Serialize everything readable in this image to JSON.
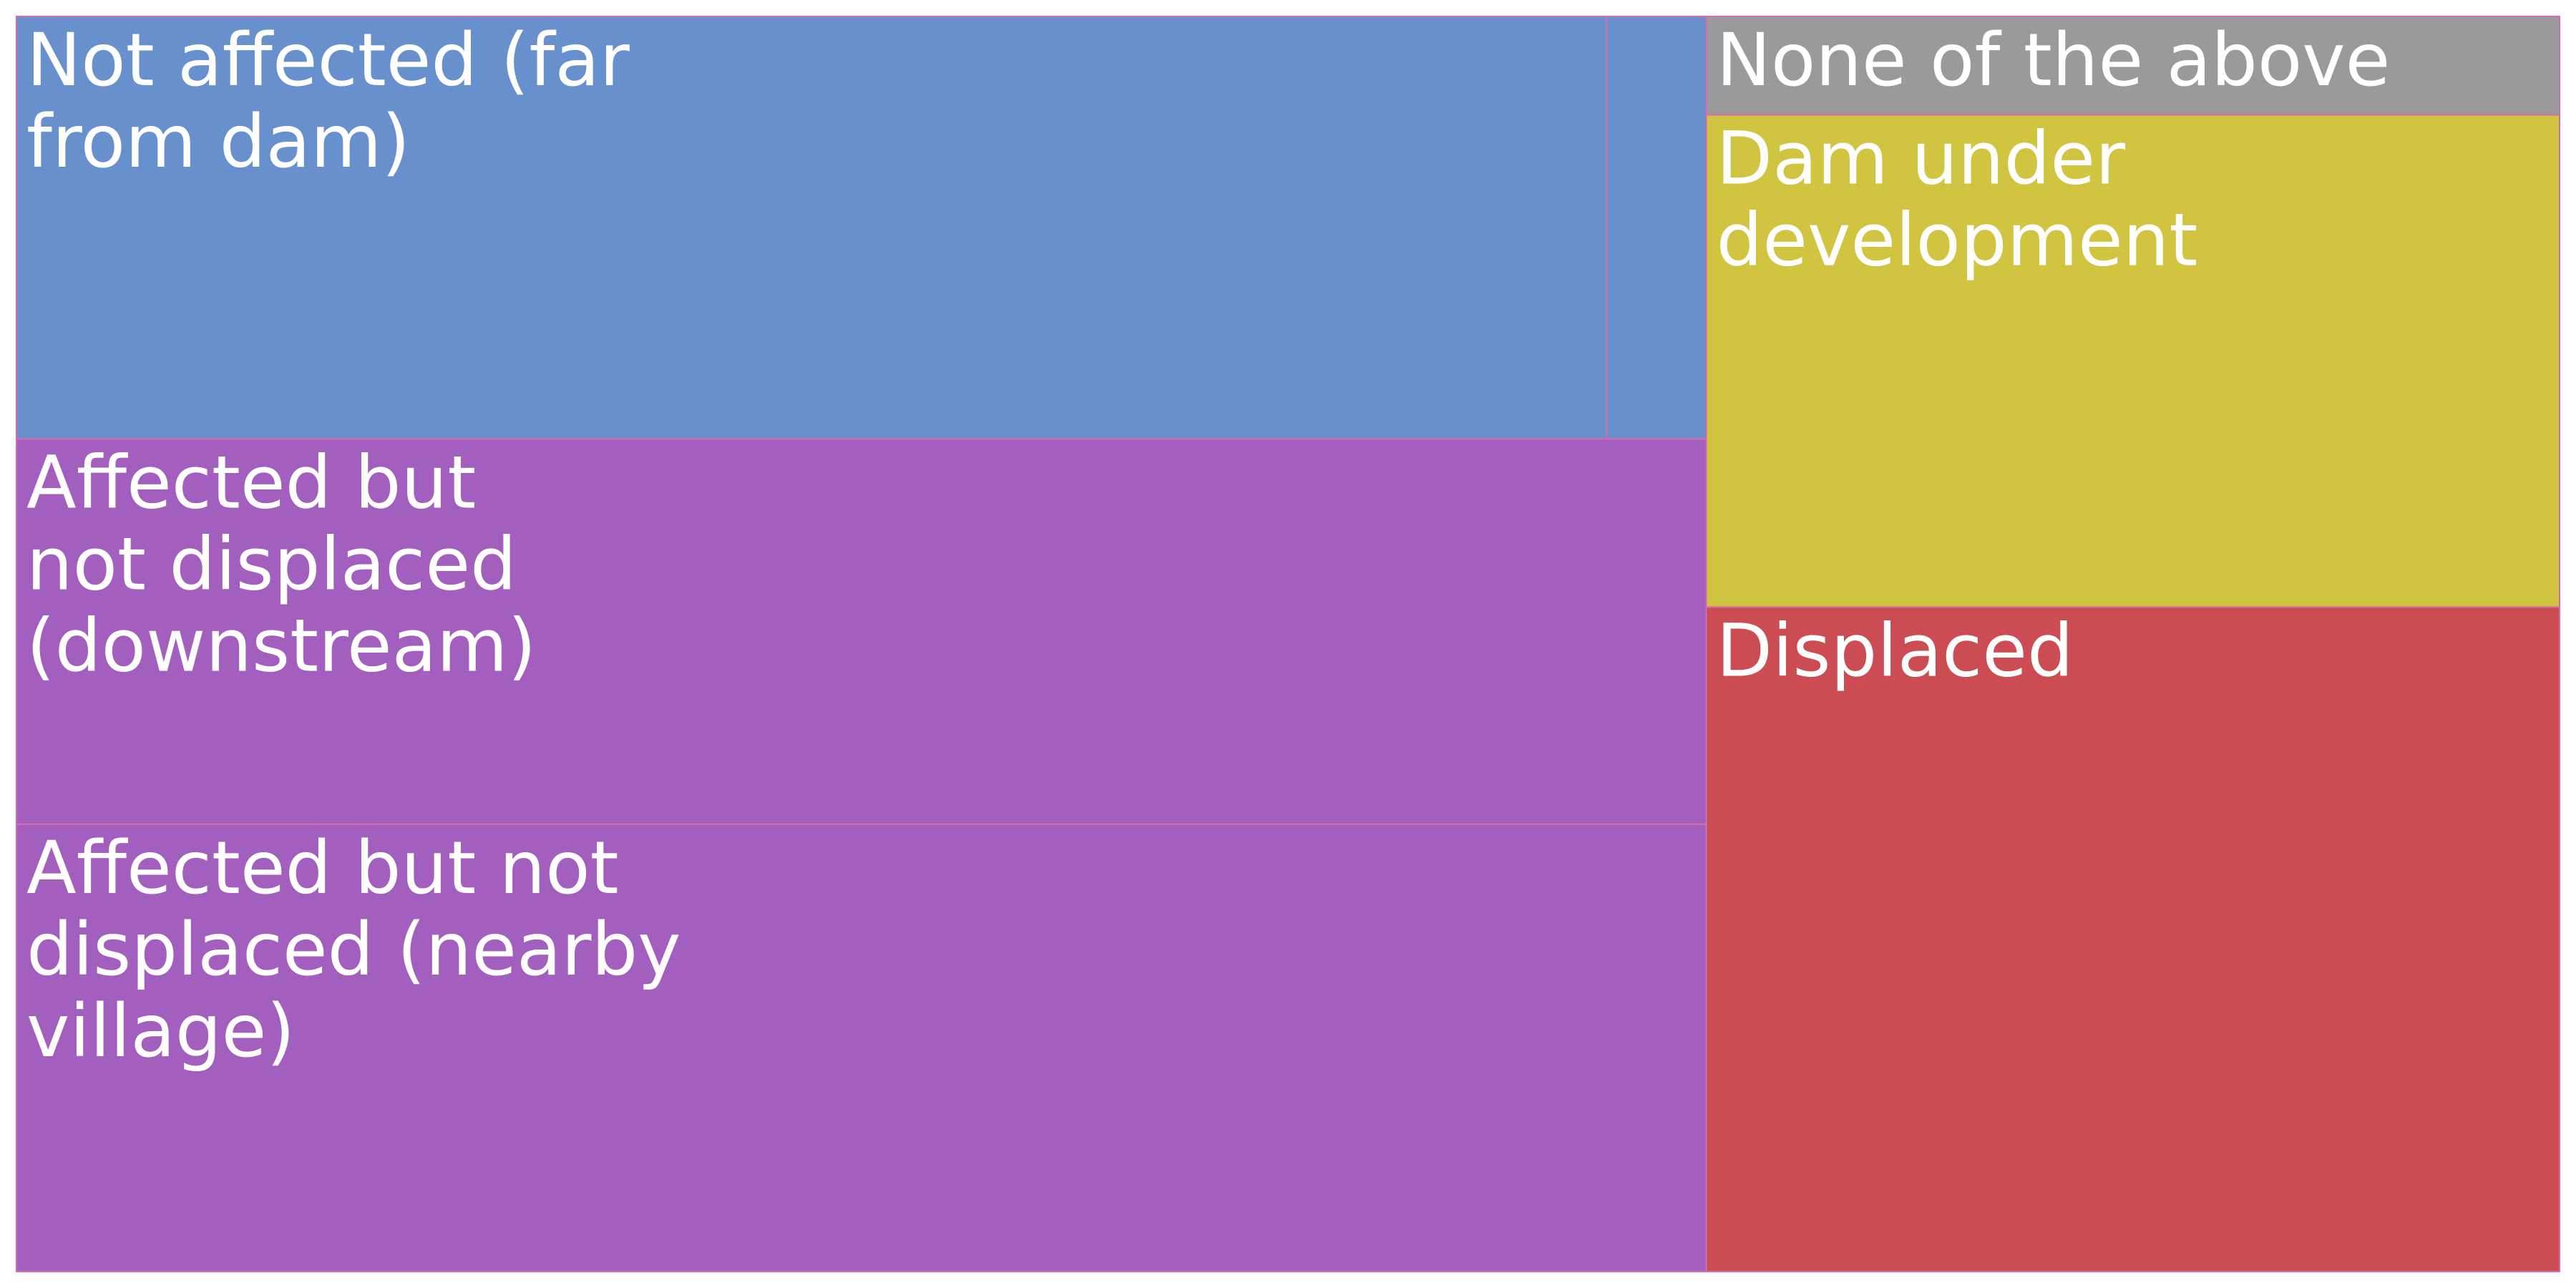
{
  "chart_data": {
    "type": "treemap",
    "title": "",
    "cells": [
      {
        "label": "Not affected (far from dam)",
        "lines": [
          "Not affected (far",
          "from dam)"
        ],
        "value": 3.2,
        "color": "#6890cd"
      },
      {
        "label": "",
        "lines": [],
        "value": 0.2,
        "color": "#6890cd"
      },
      {
        "label": "Affected but not displaced (downstream)",
        "lines": [
          "Affected but",
          "not displaced",
          "(downstream)"
        ],
        "value": 3.1,
        "color": "#a35fbe"
      },
      {
        "label": "Affected but not displaced (nearby village)",
        "lines": [
          "Affected but not",
          "displaced (nearby",
          "village)"
        ],
        "value": 3.6,
        "color": "#a35fbe"
      },
      {
        "label": "None of the above",
        "lines": [
          "None of the above"
        ],
        "value": 0.4,
        "color": "#9a9a9a"
      },
      {
        "label": "Dam under development",
        "lines": [
          "Dam under",
          "development"
        ],
        "value": 2.0,
        "color": "#d1c441"
      },
      {
        "label": "Displaced",
        "lines": [
          "Displaced"
        ],
        "value": 2.7,
        "color": "#cb4c52"
      }
    ]
  }
}
